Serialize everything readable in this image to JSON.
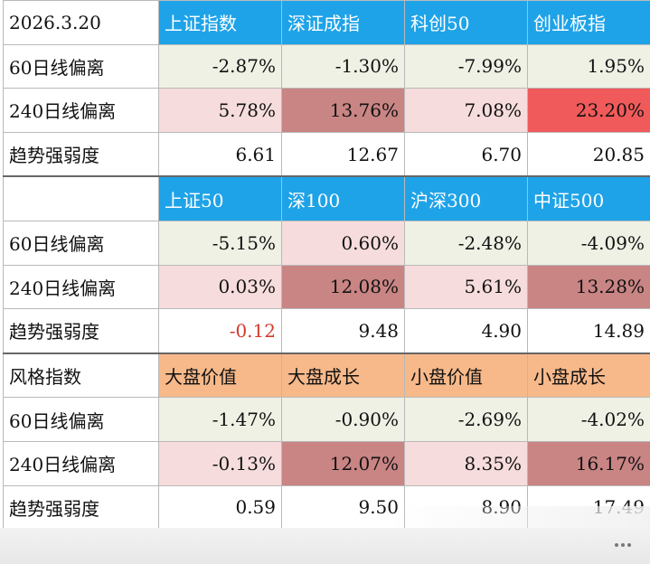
{
  "colors": {
    "header_blue": "#1fa3e8",
    "header_orange": "#f7b98a",
    "green_tint": "#eef1e4",
    "pink_light": "#f6dcdc",
    "pink_mid": "#e8bcbc",
    "rose": "#c98484",
    "red": "#f15a5a",
    "negative_text": "#d33a2c"
  },
  "sections": [
    {
      "header": [
        "2026.3.20",
        "上证指数",
        "深证成指",
        "科创50",
        "创业板指"
      ],
      "header_style": "blue",
      "rows": [
        {
          "label": "60日线偏离",
          "values": [
            "-2.87%",
            "-1.30%",
            "-7.99%",
            "1.95%"
          ],
          "fills": [
            "green",
            "green",
            "green",
            "green"
          ]
        },
        {
          "label": "240日线偏离",
          "values": [
            "5.78%",
            "13.76%",
            "7.08%",
            "23.20%"
          ],
          "fills": [
            "pink_light",
            "rose",
            "pink_light",
            "red"
          ]
        },
        {
          "label": "趋势强弱度",
          "values": [
            "6.61",
            "12.67",
            "6.70",
            "20.85"
          ],
          "fills": [
            "none",
            "none",
            "none",
            "none"
          ]
        }
      ]
    },
    {
      "header": [
        "",
        "上证50",
        "深100",
        "沪深300",
        "中证500"
      ],
      "header_style": "blue",
      "rows": [
        {
          "label": "60日线偏离",
          "values": [
            "-5.15%",
            "0.60%",
            "-2.48%",
            "-4.09%"
          ],
          "fills": [
            "green",
            "pink_light",
            "green",
            "green"
          ]
        },
        {
          "label": "240日线偏离",
          "values": [
            "0.03%",
            "12.08%",
            "5.61%",
            "13.28%"
          ],
          "fills": [
            "pink_light",
            "rose",
            "pink_light",
            "rose"
          ]
        },
        {
          "label": "趋势强弱度",
          "values": [
            "-0.12",
            "9.48",
            "4.90",
            "14.89"
          ],
          "fills": [
            "none",
            "none",
            "none",
            "none"
          ]
        }
      ]
    },
    {
      "header": [
        "风格指数",
        "大盘价值",
        "大盘成长",
        "小盘价值",
        "小盘成长"
      ],
      "header_style": "orange",
      "rows": [
        {
          "label": "60日线偏离",
          "values": [
            "-1.47%",
            "-0.90%",
            "-2.69%",
            "-4.02%"
          ],
          "fills": [
            "green",
            "green",
            "green",
            "green"
          ]
        },
        {
          "label": "240日线偏离",
          "values": [
            "-0.13%",
            "12.07%",
            "8.35%",
            "16.17%"
          ],
          "fills": [
            "pink_light",
            "rose",
            "pink_light",
            "rose"
          ]
        },
        {
          "label": "趋势强弱度",
          "values": [
            "0.59",
            "9.50",
            "8.90",
            "17.49"
          ],
          "fills": [
            "none",
            "none",
            "none",
            "none"
          ]
        }
      ]
    }
  ]
}
